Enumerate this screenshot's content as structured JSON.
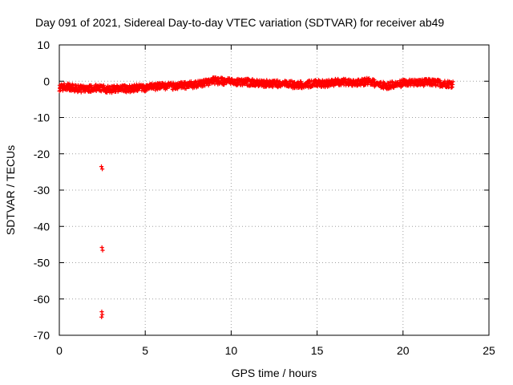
{
  "chart_data": {
    "type": "scatter",
    "title": "Day 091 of 2021, Sidereal Day-to-day VTEC variation (SDTVAR) for receiver ab49",
    "xlabel": "GPS time / hours",
    "ylabel": "SDTVAR / TECUs",
    "xlim": [
      0,
      25
    ],
    "ylim": [
      -70,
      10
    ],
    "x_ticks": [
      0,
      5,
      10,
      15,
      20,
      25
    ],
    "y_ticks": [
      10,
      0,
      -10,
      -20,
      -30,
      -40,
      -50,
      -60,
      -70
    ],
    "x_tick_labels": [
      "0",
      "5",
      "10",
      "15",
      "20",
      "25"
    ],
    "y_tick_labels": [
      "10",
      "0",
      "-10",
      "-20",
      "-30",
      "-40",
      "-50",
      "-60",
      "-70"
    ],
    "grid": true,
    "marker": "plus",
    "series_color": "#ff0000",
    "series": [
      {
        "name": "SDTVAR",
        "band_profile": {
          "x": [
            0.0,
            0.5,
            1.0,
            1.5,
            2.0,
            2.5,
            3.0,
            3.5,
            4.0,
            4.5,
            5.0,
            5.5,
            6.0,
            6.5,
            7.0,
            7.5,
            8.0,
            8.5,
            9.0,
            9.5,
            10.0,
            10.5,
            11.0,
            11.5,
            12.0,
            12.5,
            13.0,
            13.5,
            14.0,
            14.5,
            15.0,
            15.5,
            16.0,
            16.5,
            17.0,
            17.5,
            18.0,
            18.5,
            19.0,
            19.5,
            20.0,
            20.5,
            21.0,
            21.5,
            22.0,
            22.5,
            22.9
          ],
          "y": [
            -1.8,
            -1.5,
            -2.0,
            -2.2,
            -1.9,
            -2.0,
            -2.3,
            -2.0,
            -2.1,
            -1.8,
            -1.8,
            -1.6,
            -1.3,
            -1.4,
            -1.2,
            -1.1,
            -0.9,
            -0.5,
            0.2,
            0.0,
            -0.2,
            -0.3,
            -0.3,
            -0.5,
            -0.6,
            -0.7,
            -0.8,
            -0.9,
            -1.0,
            -0.8,
            -0.6,
            -0.7,
            -0.3,
            -0.2,
            -0.5,
            -0.4,
            0.0,
            -0.8,
            -1.2,
            -1.0,
            -0.6,
            -0.4,
            -0.4,
            -0.3,
            -0.5,
            -0.7,
            -0.8
          ],
          "spread": 1.6
        },
        "outliers": [
          {
            "x": 2.45,
            "y": -23.5
          },
          {
            "x": 2.5,
            "y": -24.2
          },
          {
            "x": 2.48,
            "y": -45.8
          },
          {
            "x": 2.52,
            "y": -46.6
          },
          {
            "x": 2.47,
            "y": -63.5
          },
          {
            "x": 2.5,
            "y": -64.3
          },
          {
            "x": 2.46,
            "y": -65.0
          }
        ]
      }
    ]
  }
}
